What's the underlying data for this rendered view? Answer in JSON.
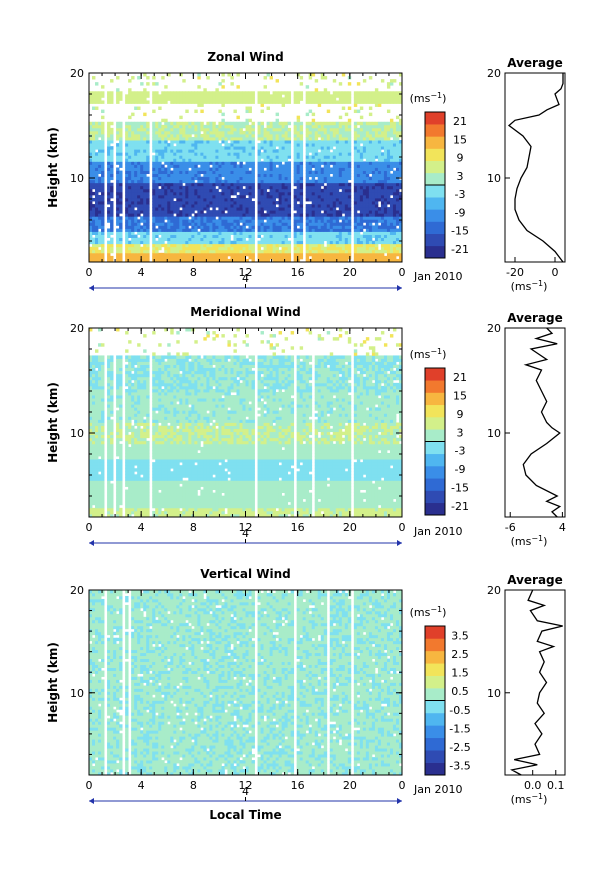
{
  "chart_data": [
    {
      "type": "heatmap",
      "title": "Zonal Wind",
      "ylabel": "Height (km)",
      "x_ticks": [
        "0",
        "4",
        "8",
        "12",
        "16",
        "20",
        "0"
      ],
      "y_ticks": [
        "10",
        "20"
      ],
      "ylim": [
        2,
        20
      ],
      "xlim": [
        0,
        24
      ],
      "date_marker": "4",
      "date_label": "Jan 2010",
      "colorbar": {
        "unit": "(ms",
        "unit_exp": "−1",
        "unit_close": ")",
        "ticks": [
          "21",
          "15",
          "9",
          "3",
          "-3",
          "-9",
          "-15",
          "-21"
        ],
        "range": [
          -24,
          24
        ],
        "colors": [
          "#2a2f8f",
          "#2f4bb3",
          "#2f6ad4",
          "#3a8ee8",
          "#4fb6f0",
          "#7fe0f0",
          "#a8ecc9",
          "#d3f08a",
          "#f2e45a",
          "#f7b640",
          "#f2792e",
          "#e0402a"
        ]
      },
      "gaps_hours": [
        1.3,
        1.9,
        2.6,
        4.8,
        12.9,
        15.6,
        16.6,
        20.1
      ],
      "layers": [
        {
          "z_from": 2.0,
          "z_to": 3.0,
          "value": 14
        },
        {
          "z_from": 3.0,
          "z_to": 3.8,
          "value": 8
        },
        {
          "z_from": 3.8,
          "z_to": 5.0,
          "value": -3
        },
        {
          "z_from": 5.0,
          "z_to": 6.5,
          "value": -12
        },
        {
          "z_from": 6.5,
          "z_to": 9.5,
          "value": -19
        },
        {
          "z_from": 9.5,
          "z_to": 11.5,
          "value": -11
        },
        {
          "z_from": 11.5,
          "z_to": 13.5,
          "value": -3
        },
        {
          "z_from": 13.5,
          "z_to": 15.5,
          "value": 4
        },
        {
          "z_from": 15.5,
          "z_to": 17.2,
          "value": 99
        },
        {
          "z_from": 17.2,
          "z_to": 18.3,
          "value": 6
        },
        {
          "z_from": 18.3,
          "z_to": 20.0,
          "value": 99
        }
      ],
      "average": {
        "title": "Average",
        "xlabel": "(ms",
        "xlabel_exp": "−1",
        "xlabel_close": ")",
        "x_ticks": [
          -20,
          0
        ],
        "x_tick_labels": [
          "-20",
          "0"
        ],
        "xlim": [
          -25,
          5
        ],
        "y_ticks": [
          "10",
          "20"
        ],
        "profile": [
          [
            2,
            4
          ],
          [
            3,
            0
          ],
          [
            4,
            -6
          ],
          [
            5,
            -14
          ],
          [
            6,
            -18
          ],
          [
            7,
            -20
          ],
          [
            8,
            -20
          ],
          [
            9,
            -19
          ],
          [
            10,
            -17
          ],
          [
            11,
            -14
          ],
          [
            12,
            -13
          ],
          [
            13,
            -12
          ],
          [
            14,
            -16
          ],
          [
            15,
            -23
          ],
          [
            15.5,
            -20
          ],
          [
            16,
            -8
          ],
          [
            16.5,
            -4
          ],
          [
            17,
            2
          ],
          [
            17.5,
            1
          ],
          [
            18,
            0
          ],
          [
            18.5,
            3
          ],
          [
            19,
            4
          ],
          [
            20,
            4
          ]
        ]
      }
    },
    {
      "type": "heatmap",
      "title": "Meridional Wind",
      "ylabel": "Height (km)",
      "x_ticks": [
        "0",
        "4",
        "8",
        "12",
        "16",
        "20",
        "0"
      ],
      "y_ticks": [
        "10",
        "20"
      ],
      "ylim": [
        2,
        20
      ],
      "xlim": [
        0,
        24
      ],
      "date_marker": "4",
      "date_label": "Jan 2010",
      "colorbar": {
        "unit": "(ms",
        "unit_exp": "−1",
        "unit_close": ")",
        "ticks": [
          "21",
          "15",
          "9",
          "3",
          "-3",
          "-9",
          "-15",
          "-21"
        ],
        "range": [
          -24,
          24
        ],
        "colors": [
          "#2a2f8f",
          "#2f4bb3",
          "#2f6ad4",
          "#3a8ee8",
          "#4fb6f0",
          "#7fe0f0",
          "#a8ecc9",
          "#d3f08a",
          "#f2e45a",
          "#f7b640",
          "#f2792e",
          "#e0402a"
        ]
      },
      "gaps_hours": [
        1.3,
        2.0,
        2.7,
        4.8,
        12.9,
        15.7,
        17.3,
        20.1
      ],
      "layers": [
        {
          "z_from": 2.0,
          "z_to": 3.0,
          "value": 5
        },
        {
          "z_from": 3.0,
          "z_to": 5.5,
          "value": 2
        },
        {
          "z_from": 5.5,
          "z_to": 7.5,
          "value": -2
        },
        {
          "z_from": 7.5,
          "z_to": 9.0,
          "value": 2
        },
        {
          "z_from": 9.0,
          "z_to": 11.0,
          "value": 4
        },
        {
          "z_from": 11.0,
          "z_to": 14.0,
          "value": 1
        },
        {
          "z_from": 14.0,
          "z_to": 17.5,
          "value": 0
        },
        {
          "z_from": 17.5,
          "z_to": 20.0,
          "value": 99
        }
      ],
      "average": {
        "title": "Average",
        "xlabel": "(ms",
        "xlabel_exp": "−1",
        "xlabel_close": ")",
        "x_ticks": [
          -6,
          4
        ],
        "x_tick_labels": [
          "-6",
          "4"
        ],
        "xlim": [
          -7,
          4.5
        ],
        "y_ticks": [
          "10",
          "20"
        ],
        "profile": [
          [
            2,
            3
          ],
          [
            2.5,
            2
          ],
          [
            3,
            3.5
          ],
          [
            3.5,
            1
          ],
          [
            4,
            3
          ],
          [
            5,
            -1
          ],
          [
            6,
            -3
          ],
          [
            7,
            -3.5
          ],
          [
            8,
            -2
          ],
          [
            9,
            1
          ],
          [
            10,
            3.5
          ],
          [
            10.5,
            2
          ],
          [
            11,
            1
          ],
          [
            12,
            0
          ],
          [
            13,
            1
          ],
          [
            14,
            0
          ],
          [
            15,
            -1
          ],
          [
            16,
            0
          ],
          [
            16.5,
            -3
          ],
          [
            17,
            1
          ],
          [
            18,
            -2
          ],
          [
            18.5,
            3
          ],
          [
            19,
            -1
          ],
          [
            19.5,
            2
          ],
          [
            20,
            1
          ]
        ]
      }
    },
    {
      "type": "heatmap",
      "title": "Vertical Wind",
      "ylabel": "Height (km)",
      "xlabel": "Local Time",
      "x_ticks": [
        "0",
        "4",
        "8",
        "12",
        "16",
        "20",
        "0"
      ],
      "y_ticks": [
        "10",
        "20"
      ],
      "ylim": [
        2,
        20
      ],
      "xlim": [
        0,
        24
      ],
      "date_marker": "4",
      "date_label": "Jan 2010",
      "colorbar": {
        "unit": "(ms",
        "unit_exp": "−1",
        "unit_close": ")",
        "ticks": [
          "3.5",
          "2.5",
          "1.5",
          "0.5",
          "-0.5",
          "-1.5",
          "-2.5",
          "-3.5"
        ],
        "range": [
          -4,
          4
        ],
        "colors": [
          "#2a2f8f",
          "#2f4bb3",
          "#2f6ad4",
          "#3a8ee8",
          "#4fb6f0",
          "#7fe0f0",
          "#a8ecc9",
          "#d3f08a",
          "#f2e45a",
          "#f7b640",
          "#f2792e",
          "#e0402a"
        ]
      },
      "gaps_hours": [
        1.3,
        2.7,
        3.2,
        12.9,
        15.7,
        18.4,
        20.1
      ],
      "layers": [
        {
          "z_from": 2.0,
          "z_to": 20.0,
          "value": 0.1
        }
      ],
      "average": {
        "title": "Average",
        "xlabel": "(ms",
        "xlabel_exp": "−1",
        "xlabel_close": ")",
        "x_ticks": [
          0.0,
          0.1
        ],
        "x_tick_labels": [
          "0.0",
          "0.1"
        ],
        "xlim": [
          -0.12,
          0.14
        ],
        "y_ticks": [
          "10",
          "20"
        ],
        "profile": [
          [
            2,
            -0.05
          ],
          [
            2.5,
            -0.09
          ],
          [
            3,
            0.02
          ],
          [
            3.5,
            -0.08
          ],
          [
            4,
            0.03
          ],
          [
            5,
            0.01
          ],
          [
            6,
            0.04
          ],
          [
            7,
            0.01
          ],
          [
            8,
            0.05
          ],
          [
            9,
            0.02
          ],
          [
            10,
            0.03
          ],
          [
            11,
            0.06
          ],
          [
            12,
            0.03
          ],
          [
            13,
            0.05
          ],
          [
            14,
            0.03
          ],
          [
            14.5,
            0.09
          ],
          [
            15,
            0.02
          ],
          [
            16,
            0.04
          ],
          [
            16.5,
            0.13
          ],
          [
            17,
            0.02
          ],
          [
            18,
            -0.01
          ],
          [
            18.5,
            0.05
          ],
          [
            19,
            -0.02
          ],
          [
            20,
            0.0
          ]
        ]
      }
    }
  ]
}
